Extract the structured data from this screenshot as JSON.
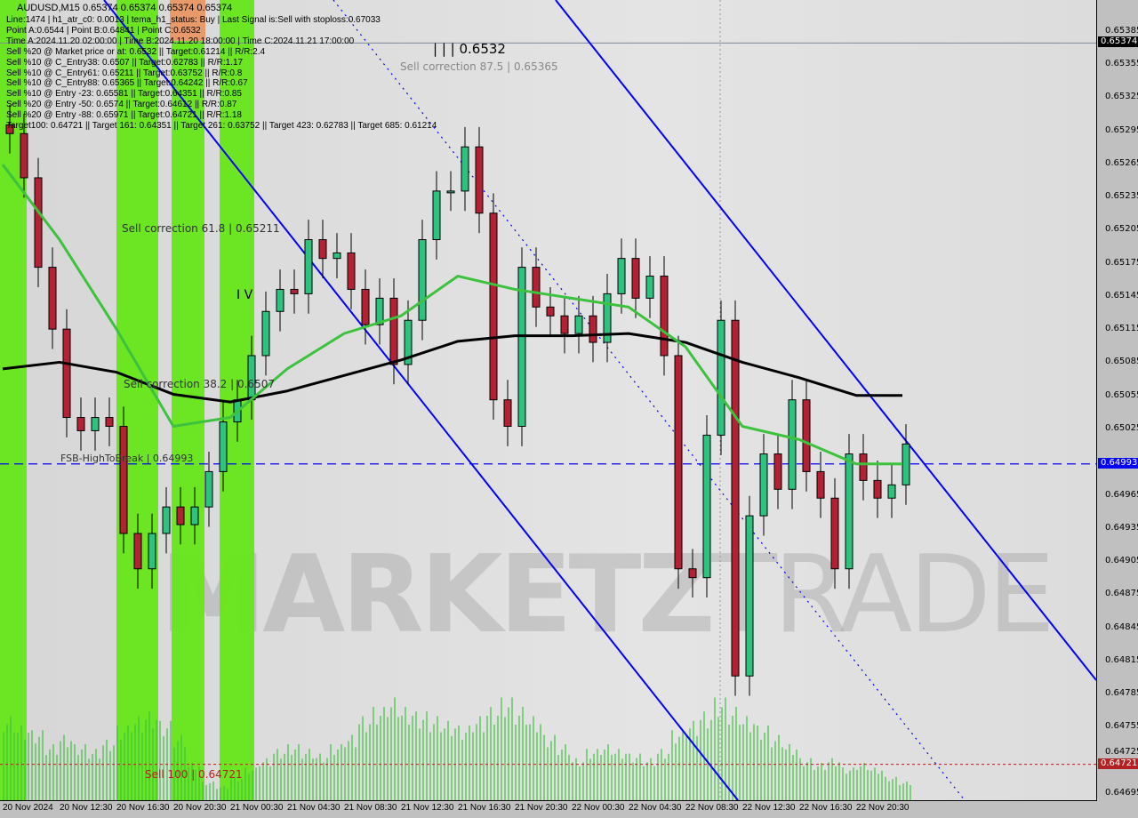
{
  "header": {
    "symbol_line": "AUDUSD,M15  0.65374 0.65374 0.65374 0.65374",
    "info_lines": [
      "Line:1474 | h1_atr_c0: 0.0013 | tema_h1_status: Buy | Last Signal is:Sell with stoploss:0.67033",
      "Point A:0.6544 | Point B:0.64841 | Point C:0.6532",
      "Time A:2024.11.20 02:00:00 | Time B:2024.11.20 18:00:00 | Time C:2024.11.21 17:00:00",
      "Sell %20 @ Market price or at: 0.6532 || Target:0.61214 || R/R:2.4",
      "Sell %10 @ C_Entry38: 0.6507 || Target:0.62783 || R/R:1.17",
      "Sell %10 @ C_Entry61: 0.65211 || Target:0.63752 || R/R:0.8",
      "Sell %10 @ C_Entry88: 0.65365 || Target:0.64242 || R/R:0.67",
      "Sell %10 @ Entry -23: 0.65581 || Target:0.64351 || R/R:0.85",
      "Sell %20 @ Entry -50: 0.6574 || Target:0.64612 || R/R:0.87",
      "Sell %20 @ Entry -88: 0.65971 || Target:0.64721 || R/R:1.18",
      "Target100: 0.64721 || Target 161: 0.64351 || Target 261: 0.63752 || Target 423: 0.62783 || Target 685: 0.61214"
    ]
  },
  "annotations": {
    "point_c": "| | | 0.6532",
    "corr875": "Sell correction 87.5 | 0.65365",
    "corr618": "Sell correction 61.8 | 0.65211",
    "corr382": "Sell correction 38.2 | 0.6507",
    "fsb": "FSB-HighToBreak | 0.64993",
    "wave": "I V",
    "sell100": "Sell 100 | 0.64721"
  },
  "watermark": "MARKETZ TRADE",
  "colors": {
    "bull": "#2ec27e",
    "bear": "#b22234",
    "ma_slow": "#000000",
    "ma_fast": "#3cc23c",
    "channel": "#0000ff",
    "session": "#66e619",
    "bid_tag": "#0000ff",
    "sell_tag": "#b22222",
    "price_tag": "#000000"
  },
  "price_tags": {
    "last": "0.65374",
    "bid": "0.64993",
    "sell100": "0.64721"
  },
  "chart_data": {
    "type": "candlestick",
    "title": "AUDUSD,M15",
    "y_ticks": [
      "0.65385",
      "0.65355",
      "0.65325",
      "0.65295",
      "0.65265",
      "0.65235",
      "0.65205",
      "0.65175",
      "0.65145",
      "0.65115",
      "0.65085",
      "0.65055",
      "0.65025",
      "0.64965",
      "0.64935",
      "0.64905",
      "0.64875",
      "0.64845",
      "0.64815",
      "0.64785",
      "0.64755",
      "0.64725",
      "0.64695"
    ],
    "x_ticks": [
      "20 Nov 2024",
      "20 Nov 12:30",
      "20 Nov 16:30",
      "20 Nov 20:30",
      "21 Nov 00:30",
      "21 Nov 04:30",
      "21 Nov 08:30",
      "21 Nov 12:30",
      "21 Nov 16:30",
      "21 Nov 20:30",
      "22 Nov 00:30",
      "22 Nov 04:30",
      "22 Nov 08:30",
      "22 Nov 12:30",
      "22 Nov 16:30",
      "22 Nov 20:30"
    ],
    "ylim": [
      0.64685,
      0.65395
    ],
    "sampled": "hourly closes from 20 Nov 2024 08:30",
    "close": [
      0.65292,
      0.65252,
      0.65171,
      0.65115,
      0.65035,
      0.65023,
      0.65035,
      0.65027,
      0.6493,
      0.64898,
      0.6493,
      0.64954,
      0.64938,
      0.64954,
      0.64986,
      0.65031,
      0.65051,
      0.65091,
      0.65131,
      0.65151,
      0.65147,
      0.65196,
      0.65179,
      0.65184,
      0.65151,
      0.65119,
      0.65143,
      0.65083,
      0.65123,
      0.65196,
      0.6524,
      0.6524,
      0.6528,
      0.6522,
      0.65051,
      0.65027,
      0.65171,
      0.65135,
      0.65127,
      0.65111,
      0.65127,
      0.65103,
      0.65147,
      0.65179,
      0.65143,
      0.65163,
      0.65091,
      0.64898,
      0.6489,
      0.65019,
      0.65123,
      0.64801,
      0.64946,
      0.65002,
      0.6497,
      0.65051,
      0.64986,
      0.64962,
      0.64898,
      0.65002,
      0.64978,
      0.64962,
      0.64974,
      0.65011
    ],
    "ma_slow_every_4h": [
      0.65079,
      0.65085,
      0.65076,
      0.65056,
      0.65049,
      0.65059,
      0.65073,
      0.65087,
      0.65104,
      0.65109,
      0.65109,
      0.65111,
      0.65103,
      0.65085,
      0.65071,
      0.65055
    ],
    "ma_fast_every_4h": [
      0.65264,
      0.65196,
      0.65115,
      0.65027,
      0.65035,
      0.65079,
      0.65111,
      0.65127,
      0.65163,
      0.65151,
      0.65143,
      0.65135,
      0.65099,
      0.65027,
      0.65015,
      0.64993
    ],
    "volume_relative": [
      90,
      80,
      75,
      60,
      70,
      60,
      55,
      65,
      80,
      90,
      95,
      85,
      70,
      40,
      20,
      15,
      25,
      35,
      45,
      55,
      60,
      55,
      50,
      60,
      70,
      90,
      100,
      110,
      100,
      95,
      90,
      85,
      80,
      90,
      100,
      110,
      100,
      90,
      70,
      60,
      45,
      55,
      60,
      55,
      50,
      45,
      55,
      75,
      85,
      95,
      110,
      100,
      90,
      80,
      70,
      60,
      45,
      40,
      45,
      35,
      40,
      35,
      25,
      20
    ],
    "levels": {
      "last": 0.65374,
      "bid": 0.64993,
      "sell100": 0.64721
    }
  }
}
